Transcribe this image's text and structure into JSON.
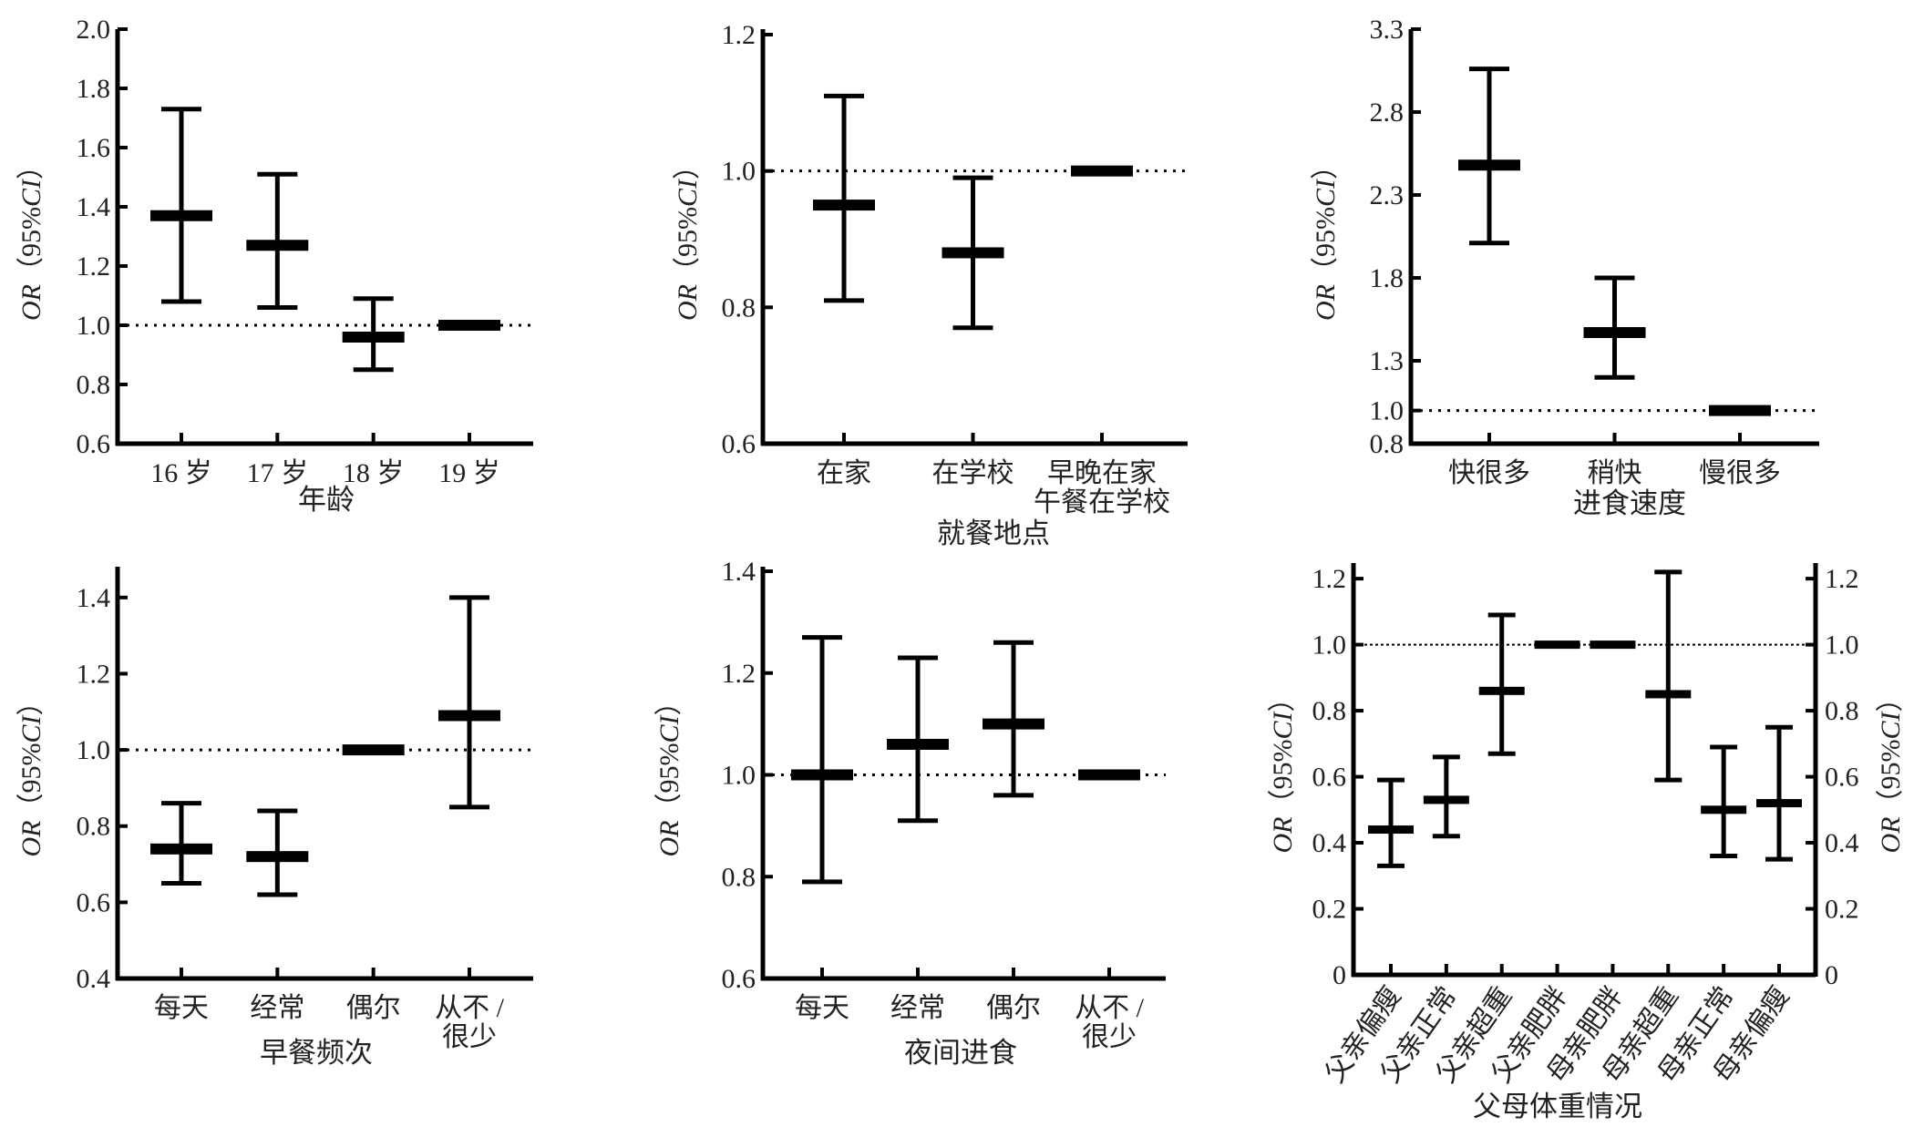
{
  "chart_data": [
    {
      "type": "errorbar",
      "xlabel": "年龄",
      "ylabel": {
        "pre": "OR",
        "mid": "（95%",
        "ci": "CI",
        "post": "）"
      },
      "ylim": [
        0.6,
        2.0
      ],
      "yticks": [
        "0.6",
        "0.8",
        "1.0",
        "1.2",
        "1.4",
        "1.6",
        "1.8",
        "2.0"
      ],
      "reference_line": 1.0,
      "categories": [
        [
          "16 岁"
        ],
        [
          "17 岁"
        ],
        [
          "18 岁"
        ],
        [
          "19 岁"
        ]
      ],
      "or": [
        1.37,
        1.27,
        0.96,
        1.0
      ],
      "lower": [
        1.08,
        1.06,
        0.85,
        null
      ],
      "upper": [
        1.73,
        1.51,
        1.09,
        null
      ]
    },
    {
      "type": "errorbar",
      "xlabel": "就餐地点",
      "ylabel": {
        "pre": "OR",
        "mid": "（95%",
        "ci": "CI",
        "post": "）"
      },
      "ylim": [
        0.6,
        1.2
      ],
      "yticks": [
        "0.6",
        "0.8",
        "1.0",
        "1.2"
      ],
      "reference_line": 1.0,
      "categories": [
        [
          "在家"
        ],
        [
          "在学校"
        ],
        [
          "早晚在家",
          "午餐在学校"
        ]
      ],
      "or": [
        0.95,
        0.88,
        1.0
      ],
      "lower": [
        0.81,
        0.77,
        null
      ],
      "upper": [
        1.11,
        0.99,
        null
      ]
    },
    {
      "type": "errorbar",
      "xlabel": "进食速度",
      "ylabel": {
        "pre": "OR",
        "mid": "（95%",
        "ci": "CI",
        "post": "）"
      },
      "ylim": [
        0.8,
        3.3
      ],
      "yticks": [
        "0.8",
        "1.0",
        "1.3",
        "1.8",
        "2.3",
        "2.8",
        "3.3"
      ],
      "reference_line": 1.0,
      "categories": [
        [
          "快很多"
        ],
        [
          "稍快"
        ],
        [
          "慢很多"
        ]
      ],
      "or": [
        2.48,
        1.47,
        1.0
      ],
      "lower": [
        2.01,
        1.2,
        null
      ],
      "upper": [
        3.06,
        1.8,
        null
      ]
    },
    {
      "type": "errorbar",
      "xlabel": "早餐频次",
      "ylabel": {
        "pre": "OR",
        "mid": "（95%",
        "ci": "CI",
        "post": "）"
      },
      "ylim": [
        0.4,
        1.5
      ],
      "yticks": [
        "0.4",
        "0.6",
        "0.8",
        "1.0",
        "1.2",
        "1.4"
      ],
      "reference_line": 1.0,
      "categories": [
        [
          "每天"
        ],
        [
          "经常"
        ],
        [
          "偶尔"
        ],
        [
          "从不 /",
          "很少"
        ]
      ],
      "or": [
        0.74,
        0.72,
        1.0,
        1.09
      ],
      "lower": [
        0.65,
        0.62,
        null,
        0.85
      ],
      "upper": [
        0.86,
        0.84,
        null,
        1.4
      ]
    },
    {
      "type": "errorbar",
      "xlabel": "夜间进食",
      "ylabel": {
        "pre": "OR",
        "mid": "（95%",
        "ci": "CI",
        "post": "）"
      },
      "ylim": [
        0.6,
        1.4
      ],
      "yticks": [
        "0.6",
        "0.8",
        "1.0",
        "1.2",
        "1.4"
      ],
      "reference_line": 1.0,
      "categories": [
        [
          "每天"
        ],
        [
          "经常"
        ],
        [
          "偶尔"
        ],
        [
          "从不 /",
          "很少"
        ]
      ],
      "or": [
        1.0,
        1.06,
        1.1,
        1.0
      ],
      "lower": [
        0.79,
        0.91,
        0.96,
        null
      ],
      "upper": [
        1.27,
        1.23,
        1.26,
        null
      ]
    },
    {
      "type": "errorbar",
      "xlabel": "父母体重情况",
      "ylabel": {
        "pre": "OR",
        "mid": "（95%",
        "ci": "CI",
        "post": "）"
      },
      "ylabel_right": {
        "pre": "OR",
        "mid": "（95%",
        "ci": "CI",
        "post": "）"
      },
      "ylim": [
        0,
        1.25
      ],
      "yticks": [
        "0",
        "0.2",
        "0.4",
        "0.6",
        "0.8",
        "1.0",
        "1.2"
      ],
      "reference_line": 1.0,
      "categories": [
        [
          "父亲偏瘦"
        ],
        [
          "父亲正常"
        ],
        [
          "父亲超重"
        ],
        [
          "父亲肥胖"
        ],
        [
          "母亲肥胖"
        ],
        [
          "母亲超重"
        ],
        [
          "母亲正常"
        ],
        [
          "母亲偏瘦"
        ]
      ],
      "or": [
        0.44,
        0.53,
        0.86,
        1.0,
        1.0,
        0.85,
        0.5,
        0.52
      ],
      "lower": [
        0.33,
        0.42,
        0.67,
        null,
        null,
        0.59,
        0.36,
        0.35
      ],
      "upper": [
        0.59,
        0.66,
        1.09,
        null,
        null,
        1.22,
        0.69,
        0.75
      ]
    }
  ]
}
